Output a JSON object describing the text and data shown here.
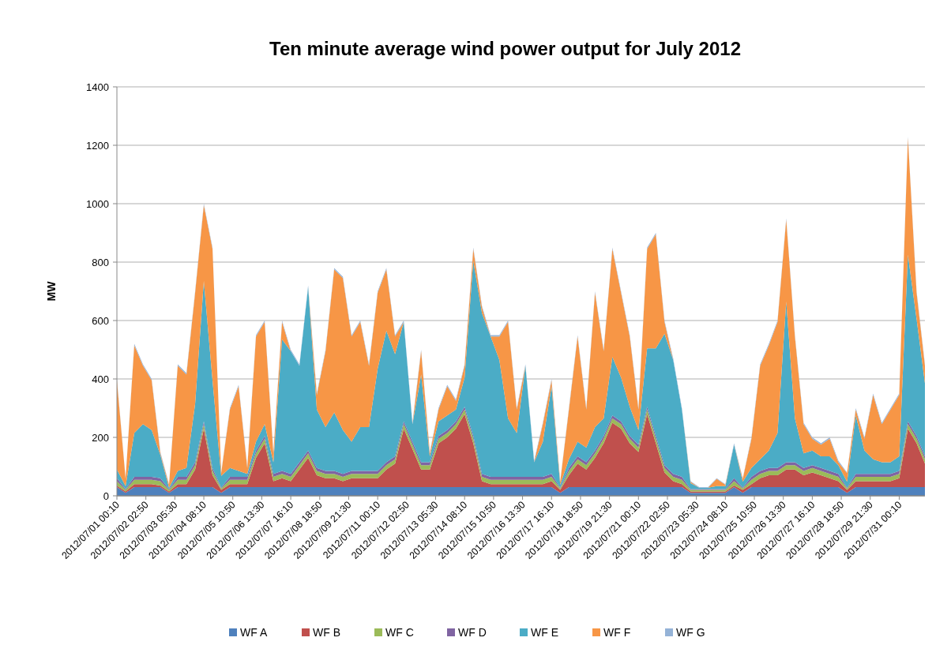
{
  "chart_data": {
    "type": "area",
    "stacked": true,
    "title": "Ten minute average wind power output for July 2012",
    "ylabel": "MW",
    "x": [
      "2012-07-01T00:10",
      "2012-07-01T08:10",
      "2012-07-01T16:10",
      "2012-07-02T00:10",
      "2012-07-02T08:10",
      "2012-07-02T16:10",
      "2012-07-03T00:10",
      "2012-07-03T08:10",
      "2012-07-03T16:10",
      "2012-07-04T00:10",
      "2012-07-04T08:10",
      "2012-07-04T16:10",
      "2012-07-05T00:10",
      "2012-07-05T08:10",
      "2012-07-05T16:10",
      "2012-07-06T00:10",
      "2012-07-06T08:10",
      "2012-07-06T16:10",
      "2012-07-07T00:10",
      "2012-07-07T08:10",
      "2012-07-07T16:10",
      "2012-07-08T00:10",
      "2012-07-08T08:10",
      "2012-07-08T16:10",
      "2012-07-09T00:10",
      "2012-07-09T08:10",
      "2012-07-09T16:10",
      "2012-07-10T00:10",
      "2012-07-10T08:10",
      "2012-07-10T16:10",
      "2012-07-11T00:10",
      "2012-07-11T08:10",
      "2012-07-11T16:10",
      "2012-07-12T00:10",
      "2012-07-12T08:10",
      "2012-07-12T16:10",
      "2012-07-13T00:10",
      "2012-07-13T08:10",
      "2012-07-13T16:10",
      "2012-07-14T00:10",
      "2012-07-14T08:10",
      "2012-07-14T16:10",
      "2012-07-15T00:10",
      "2012-07-15T08:10",
      "2012-07-15T16:10",
      "2012-07-16T00:10",
      "2012-07-16T08:10",
      "2012-07-16T16:10",
      "2012-07-17T00:10",
      "2012-07-17T08:10",
      "2012-07-17T16:10",
      "2012-07-18T00:10",
      "2012-07-18T08:10",
      "2012-07-18T16:10",
      "2012-07-19T00:10",
      "2012-07-19T08:10",
      "2012-07-19T16:10",
      "2012-07-20T00:10",
      "2012-07-20T08:10",
      "2012-07-20T16:10",
      "2012-07-21T00:10",
      "2012-07-21T08:10",
      "2012-07-21T16:10",
      "2012-07-22T00:10",
      "2012-07-22T08:10",
      "2012-07-22T16:10",
      "2012-07-23T00:10",
      "2012-07-23T08:10",
      "2012-07-23T16:10",
      "2012-07-24T00:10",
      "2012-07-24T08:10",
      "2012-07-24T16:10",
      "2012-07-25T00:10",
      "2012-07-25T08:10",
      "2012-07-25T16:10",
      "2012-07-26T00:10",
      "2012-07-26T08:10",
      "2012-07-26T16:10",
      "2012-07-27T00:10",
      "2012-07-27T08:10",
      "2012-07-27T16:10",
      "2012-07-28T00:10",
      "2012-07-28T08:10",
      "2012-07-28T16:10",
      "2012-07-29T00:10",
      "2012-07-29T08:10",
      "2012-07-29T16:10",
      "2012-07-30T00:10",
      "2012-07-30T08:10",
      "2012-07-30T16:10",
      "2012-07-31T00:10",
      "2012-07-31T08:10",
      "2012-07-31T16:10",
      "2012-07-31T23:50"
    ],
    "series": [
      {
        "name": "WF A",
        "color": "#4f81bd",
        "values": [
          30,
          10,
          30,
          30,
          30,
          30,
          10,
          30,
          30,
          30,
          30,
          30,
          10,
          30,
          30,
          30,
          30,
          30,
          30,
          30,
          30,
          30,
          30,
          30,
          30,
          30,
          30,
          30,
          30,
          30,
          30,
          30,
          30,
          30,
          30,
          30,
          30,
          30,
          30,
          30,
          30,
          30,
          30,
          30,
          30,
          30,
          30,
          30,
          30,
          30,
          30,
          10,
          30,
          30,
          30,
          30,
          30,
          30,
          30,
          30,
          30,
          30,
          30,
          30,
          30,
          30,
          10,
          10,
          10,
          10,
          10,
          30,
          10,
          30,
          30,
          30,
          30,
          30,
          30,
          30,
          30,
          30,
          30,
          30,
          10,
          30,
          30,
          30,
          30,
          30,
          30,
          30,
          30,
          30
        ]
      },
      {
        "name": "WF B",
        "color": "#c0504d",
        "values": [
          5,
          5,
          10,
          10,
          10,
          5,
          5,
          10,
          10,
          60,
          200,
          40,
          10,
          10,
          10,
          10,
          100,
          150,
          20,
          30,
          20,
          60,
          100,
          40,
          30,
          30,
          20,
          30,
          30,
          30,
          30,
          60,
          80,
          200,
          130,
          60,
          60,
          150,
          170,
          200,
          250,
          150,
          20,
          10,
          10,
          10,
          10,
          10,
          10,
          10,
          20,
          10,
          40,
          80,
          60,
          100,
          150,
          220,
          200,
          150,
          120,
          250,
          150,
          50,
          20,
          10,
          5,
          5,
          5,
          5,
          5,
          5,
          10,
          10,
          30,
          40,
          40,
          60,
          60,
          40,
          50,
          40,
          30,
          20,
          10,
          20,
          20,
          20,
          20,
          20,
          30,
          200,
          150,
          80
        ]
      },
      {
        "name": "WF C",
        "color": "#9bbb59",
        "values": [
          15,
          5,
          15,
          15,
          15,
          15,
          5,
          15,
          15,
          15,
          15,
          15,
          5,
          15,
          15,
          15,
          15,
          15,
          15,
          15,
          15,
          15,
          15,
          15,
          15,
          15,
          15,
          15,
          15,
          15,
          15,
          15,
          15,
          15,
          15,
          15,
          15,
          15,
          15,
          15,
          15,
          15,
          15,
          15,
          15,
          15,
          15,
          15,
          15,
          15,
          15,
          5,
          15,
          15,
          15,
          15,
          15,
          15,
          15,
          15,
          15,
          15,
          15,
          15,
          15,
          15,
          5,
          5,
          5,
          5,
          5,
          15,
          5,
          15,
          15,
          15,
          15,
          15,
          15,
          15,
          15,
          15,
          15,
          15,
          5,
          15,
          15,
          15,
          15,
          15,
          15,
          15,
          15,
          15
        ]
      },
      {
        "name": "WF D",
        "color": "#8064a2",
        "values": [
          10,
          3,
          10,
          10,
          10,
          10,
          3,
          10,
          10,
          10,
          10,
          10,
          3,
          10,
          10,
          10,
          10,
          10,
          10,
          10,
          10,
          10,
          10,
          10,
          10,
          10,
          10,
          10,
          10,
          10,
          10,
          10,
          10,
          10,
          10,
          10,
          10,
          10,
          10,
          10,
          10,
          10,
          10,
          10,
          10,
          10,
          10,
          10,
          10,
          10,
          10,
          3,
          10,
          10,
          10,
          10,
          10,
          10,
          10,
          10,
          10,
          10,
          10,
          10,
          10,
          10,
          3,
          3,
          3,
          3,
          3,
          10,
          3,
          10,
          10,
          10,
          10,
          10,
          10,
          10,
          10,
          10,
          10,
          10,
          3,
          10,
          10,
          10,
          10,
          10,
          10,
          10,
          10,
          10
        ]
      },
      {
        "name": "WF E",
        "color": "#4bacc6",
        "values": [
          30,
          10,
          150,
          180,
          160,
          80,
          5,
          20,
          30,
          200,
          480,
          300,
          40,
          30,
          20,
          10,
          30,
          40,
          40,
          450,
          420,
          330,
          560,
          200,
          150,
          200,
          150,
          100,
          150,
          150,
          350,
          450,
          350,
          340,
          60,
          300,
          20,
          50,
          50,
          40,
          100,
          600,
          550,
          480,
          400,
          200,
          150,
          380,
          50,
          120,
          300,
          10,
          30,
          50,
          50,
          80,
          60,
          200,
          150,
          100,
          50,
          200,
          300,
          450,
          390,
          230,
          20,
          5,
          5,
          10,
          10,
          115,
          20,
          30,
          40,
          60,
          120,
          550,
          150,
          50,
          50,
          40,
          50,
          30,
          20,
          200,
          80,
          50,
          40,
          40,
          50,
          570,
          400,
          250
        ]
      },
      {
        "name": "WF F",
        "color": "#f79646",
        "values": [
          305,
          25,
          300,
          200,
          170,
          5,
          10,
          360,
          320,
          380,
          260,
          450,
          10,
          200,
          290,
          20,
          360,
          350,
          30,
          60,
          0,
          0,
          0,
          50,
          260,
          490,
          520,
          360,
          360,
          210,
          260,
          210,
          60,
          0,
          0,
          80,
          10,
          40,
          100,
          30,
          40,
          40,
          20,
          0,
          80,
          330,
          80,
          0,
          0,
          60,
          20,
          10,
          170,
          360,
          130,
          460,
          230,
          370,
          290,
          240,
          70,
          340,
          390,
          40,
          0,
          0,
          5,
          0,
          0,
          25,
          5,
          0,
          10,
          100,
          320,
          360,
          380,
          280,
          280,
          100,
          40,
          40,
          60,
          10,
          30,
          20,
          40,
          220,
          130,
          180,
          210,
          400,
          90,
          60
        ]
      },
      {
        "name": "WF G",
        "color": "#95b3d7",
        "values": [
          5,
          2,
          5,
          5,
          5,
          5,
          2,
          5,
          5,
          5,
          5,
          5,
          2,
          5,
          5,
          5,
          5,
          5,
          5,
          5,
          5,
          5,
          5,
          5,
          5,
          5,
          5,
          5,
          5,
          5,
          5,
          5,
          5,
          5,
          5,
          5,
          5,
          5,
          5,
          5,
          5,
          5,
          5,
          5,
          5,
          5,
          5,
          5,
          5,
          5,
          5,
          2,
          5,
          5,
          5,
          5,
          5,
          5,
          5,
          5,
          5,
          5,
          5,
          5,
          5,
          5,
          2,
          2,
          2,
          2,
          2,
          5,
          2,
          5,
          5,
          5,
          5,
          5,
          5,
          5,
          5,
          5,
          5,
          5,
          2,
          5,
          5,
          5,
          5,
          5,
          5,
          5,
          5,
          5
        ]
      }
    ],
    "xlim": [
      "2012-07-01T00:10",
      "2012-07-31T23:50"
    ],
    "xticks": [
      {
        "value": "2012-07-01T00:10",
        "label": "2012/07/01 00:10"
      },
      {
        "value": "2012-07-02T02:50",
        "label": "2012/07/02 02:50"
      },
      {
        "value": "2012-07-03T05:30",
        "label": "2012/07/03 05:30"
      },
      {
        "value": "2012-07-04T08:10",
        "label": "2012/07/04 08:10"
      },
      {
        "value": "2012-07-05T10:50",
        "label": "2012/07/05 10:50"
      },
      {
        "value": "2012-07-06T13:30",
        "label": "2012/07/06 13:30"
      },
      {
        "value": "2012-07-07T16:10",
        "label": "2012/07/07 16:10"
      },
      {
        "value": "2012-07-08T18:50",
        "label": "2012/07/08 18:50"
      },
      {
        "value": "2012-07-09T21:30",
        "label": "2012/07/09 21:30"
      },
      {
        "value": "2012-07-11T00:10",
        "label": "2012/07/11 00:10"
      },
      {
        "value": "2012-07-12T02:50",
        "label": "2012/07/12 02:50"
      },
      {
        "value": "2012-07-13T05:30",
        "label": "2012/07/13 05:30"
      },
      {
        "value": "2012-07-14T08:10",
        "label": "2012/07/14 08:10"
      },
      {
        "value": "2012-07-15T10:50",
        "label": "2012/07/15 10:50"
      },
      {
        "value": "2012-07-16T13:30",
        "label": "2012/07/16 13:30"
      },
      {
        "value": "2012-07-17T16:10",
        "label": "2012/07/17 16:10"
      },
      {
        "value": "2012-07-18T18:50",
        "label": "2012/07/18 18:50"
      },
      {
        "value": "2012-07-19T21:30",
        "label": "2012/07/19 21:30"
      },
      {
        "value": "2012-07-21T00:10",
        "label": "2012/07/21 00:10"
      },
      {
        "value": "2012-07-22T02:50",
        "label": "2012/07/22 02:50"
      },
      {
        "value": "2012-07-23T05:30",
        "label": "2012/07/23 05:30"
      },
      {
        "value": "2012-07-24T08:10",
        "label": "2012/07/24 08:10"
      },
      {
        "value": "2012-07-25T10:50",
        "label": "2012/07/25 10:50"
      },
      {
        "value": "2012-07-26T13:30",
        "label": "2012/07/26 13:30"
      },
      {
        "value": "2012-07-27T16:10",
        "label": "2012/07/27 16:10"
      },
      {
        "value": "2012-07-28T18:50",
        "label": "2012/07/28 18:50"
      },
      {
        "value": "2012-07-29T21:30",
        "label": "2012/07/29 21:30"
      },
      {
        "value": "2012-07-31T00:10",
        "label": "2012/07/31 00:10"
      }
    ],
    "ylim": [
      0,
      1400
    ],
    "yticks": [
      0,
      200,
      400,
      600,
      800,
      1000,
      1200,
      1400
    ],
    "grid": "y",
    "legend": "bottom"
  }
}
